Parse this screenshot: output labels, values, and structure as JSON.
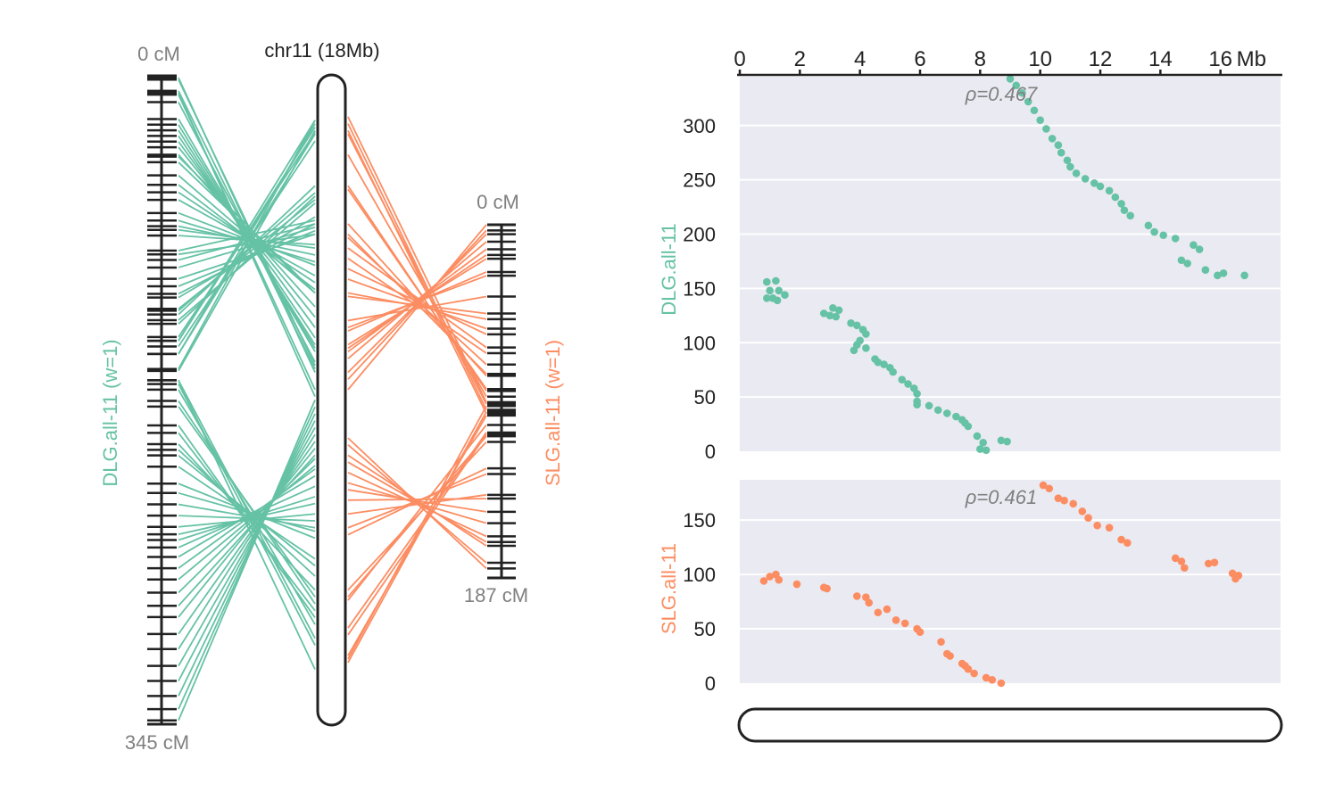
{
  "colors": {
    "dlg": "#66c2a5",
    "slg": "#fc8d62",
    "axis": "#222222",
    "grey": "#808080",
    "panel_bg": "#eaeaf2",
    "grid": "#ffffff"
  },
  "physical_chrom": {
    "label": "chr11 (18Mb)",
    "length_mb": 18
  },
  "dlg_map": {
    "label": "DLG.all-11 (w=1)",
    "top_label": "0 cM",
    "bottom_label": "345 cM",
    "length_cm": 345
  },
  "slg_map": {
    "label": "SLG.all-11 (w=1)",
    "top_label": "0 cM",
    "bottom_label": "187 cM",
    "length_cm": 187
  },
  "chart_data": [
    {
      "type": "scatter",
      "ylabel": "DLG.all-11",
      "annotation": "ρ=0.467",
      "xlim": [
        0,
        18
      ],
      "ylim": [
        0,
        345
      ],
      "x_ticks": [
        "0",
        "2",
        "4",
        "6",
        "8",
        "10",
        "12",
        "14",
        "16"
      ],
      "x_unit": "Mb",
      "y_ticks": [
        "0",
        "50",
        "100",
        "150",
        "200",
        "250",
        "300"
      ],
      "grid": true,
      "points": [
        [
          0.9,
          156
        ],
        [
          1.2,
          157
        ],
        [
          1.3,
          148
        ],
        [
          1.0,
          148
        ],
        [
          1.5,
          144
        ],
        [
          0.9,
          141
        ],
        [
          1.1,
          141
        ],
        [
          1.25,
          139
        ],
        [
          2.8,
          127
        ],
        [
          3.0,
          125
        ],
        [
          3.1,
          132
        ],
        [
          3.3,
          130
        ],
        [
          3.2,
          124
        ],
        [
          3.7,
          118
        ],
        [
          3.9,
          116
        ],
        [
          4.1,
          112
        ],
        [
          4.2,
          108
        ],
        [
          4.0,
          102
        ],
        [
          3.9,
          98
        ],
        [
          3.8,
          93
        ],
        [
          4.2,
          95
        ],
        [
          4.5,
          85
        ],
        [
          4.6,
          82
        ],
        [
          4.8,
          80
        ],
        [
          5.0,
          77
        ],
        [
          5.1,
          73
        ],
        [
          5.4,
          66
        ],
        [
          5.6,
          62
        ],
        [
          5.8,
          58
        ],
        [
          5.9,
          53
        ],
        [
          5.9,
          46
        ],
        [
          5.9,
          43
        ],
        [
          6.3,
          42
        ],
        [
          6.6,
          38
        ],
        [
          6.9,
          35
        ],
        [
          7.2,
          32
        ],
        [
          7.4,
          29
        ],
        [
          7.5,
          26
        ],
        [
          7.6,
          23
        ],
        [
          7.9,
          14
        ],
        [
          8.1,
          8
        ],
        [
          8.0,
          2
        ],
        [
          8.2,
          1
        ],
        [
          8.7,
          10
        ],
        [
          8.9,
          9
        ],
        [
          9.0,
          343
        ],
        [
          9.2,
          337
        ],
        [
          9.4,
          330
        ],
        [
          9.6,
          322
        ],
        [
          9.8,
          314
        ],
        [
          10.0,
          305
        ],
        [
          10.2,
          297
        ],
        [
          10.4,
          288
        ],
        [
          10.6,
          282
        ],
        [
          10.7,
          275
        ],
        [
          10.9,
          268
        ],
        [
          11.0,
          262
        ],
        [
          11.2,
          256
        ],
        [
          11.5,
          251
        ],
        [
          11.8,
          247
        ],
        [
          12.0,
          244
        ],
        [
          12.3,
          240
        ],
        [
          12.5,
          234
        ],
        [
          12.7,
          228
        ],
        [
          12.8,
          222
        ],
        [
          13.0,
          217
        ],
        [
          13.6,
          208
        ],
        [
          13.8,
          202
        ],
        [
          14.1,
          199
        ],
        [
          14.5,
          196
        ],
        [
          15.1,
          190
        ],
        [
          15.3,
          186
        ],
        [
          14.7,
          176
        ],
        [
          14.9,
          173
        ],
        [
          15.5,
          167
        ],
        [
          15.9,
          162
        ],
        [
          16.1,
          164
        ],
        [
          16.8,
          162
        ]
      ]
    },
    {
      "type": "scatter",
      "ylabel": "SLG.all-11",
      "annotation": "ρ=0.461",
      "xlim": [
        0,
        18
      ],
      "ylim": [
        0,
        187
      ],
      "x_ticks": [
        "0",
        "2",
        "4",
        "6",
        "8",
        "10",
        "12",
        "14",
        "16"
      ],
      "x_unit": "Mb",
      "y_ticks": [
        "0",
        "50",
        "100",
        "150"
      ],
      "grid": true,
      "points": [
        [
          0.8,
          94
        ],
        [
          1.0,
          98
        ],
        [
          1.2,
          100
        ],
        [
          1.3,
          95
        ],
        [
          1.9,
          91
        ],
        [
          2.8,
          88
        ],
        [
          2.9,
          87
        ],
        [
          3.9,
          80
        ],
        [
          4.2,
          79
        ],
        [
          4.3,
          74
        ],
        [
          4.6,
          65
        ],
        [
          4.9,
          68
        ],
        [
          5.2,
          58
        ],
        [
          5.5,
          55
        ],
        [
          5.9,
          50
        ],
        [
          6.0,
          47
        ],
        [
          6.7,
          38
        ],
        [
          6.9,
          27
        ],
        [
          7.0,
          25
        ],
        [
          7.4,
          18
        ],
        [
          7.5,
          16
        ],
        [
          7.6,
          13
        ],
        [
          7.8,
          9
        ],
        [
          8.2,
          5
        ],
        [
          8.4,
          3
        ],
        [
          8.7,
          0
        ],
        [
          10.1,
          182
        ],
        [
          10.3,
          179
        ],
        [
          10.6,
          170
        ],
        [
          10.8,
          168
        ],
        [
          11.1,
          165
        ],
        [
          11.4,
          158
        ],
        [
          11.6,
          152
        ],
        [
          11.9,
          145
        ],
        [
          12.3,
          143
        ],
        [
          12.7,
          132
        ],
        [
          12.9,
          129
        ],
        [
          14.5,
          115
        ],
        [
          14.7,
          112
        ],
        [
          14.8,
          106
        ],
        [
          15.6,
          110
        ],
        [
          15.8,
          111
        ],
        [
          16.5,
          96
        ],
        [
          16.6,
          99
        ],
        [
          16.4,
          101
        ]
      ]
    }
  ]
}
